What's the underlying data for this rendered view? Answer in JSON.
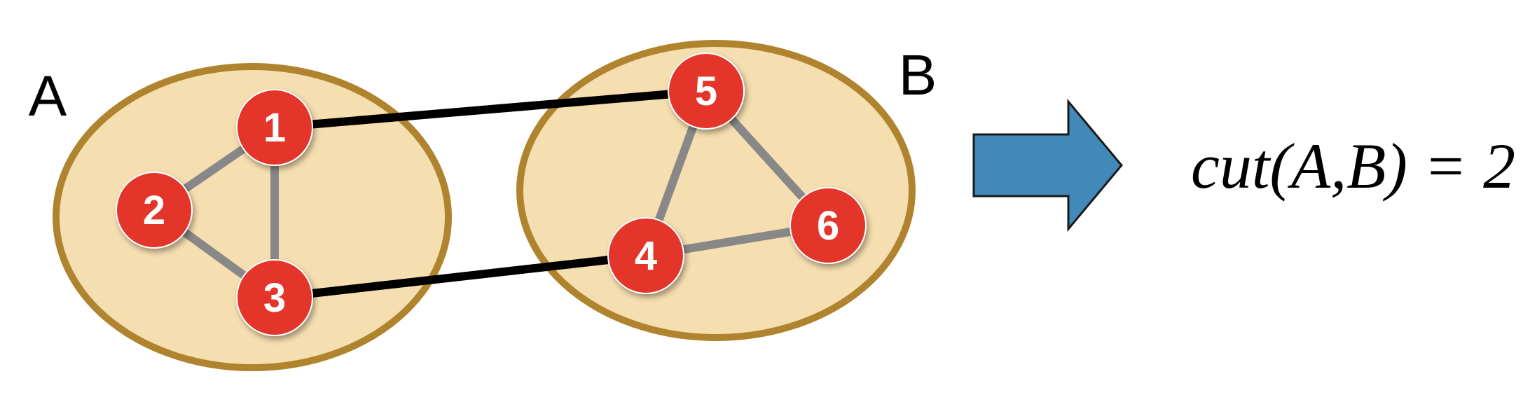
{
  "sets": {
    "a_label": "A",
    "b_label": "B"
  },
  "nodes": [
    "1",
    "2",
    "3",
    "4",
    "5",
    "6"
  ],
  "formula": "cut(A,B) = 2",
  "colors": {
    "set_fill": "#f5deb0",
    "set_stroke": "#b0842f",
    "node_fill": "#e3342a",
    "node_text": "#ffffff",
    "internal_edge": "#888888",
    "cut_edge": "#000000",
    "arrow_fill": "#4189b8",
    "arrow_stroke": "#1a1a1a"
  },
  "icons": {
    "arrow": "right-arrow-icon"
  }
}
